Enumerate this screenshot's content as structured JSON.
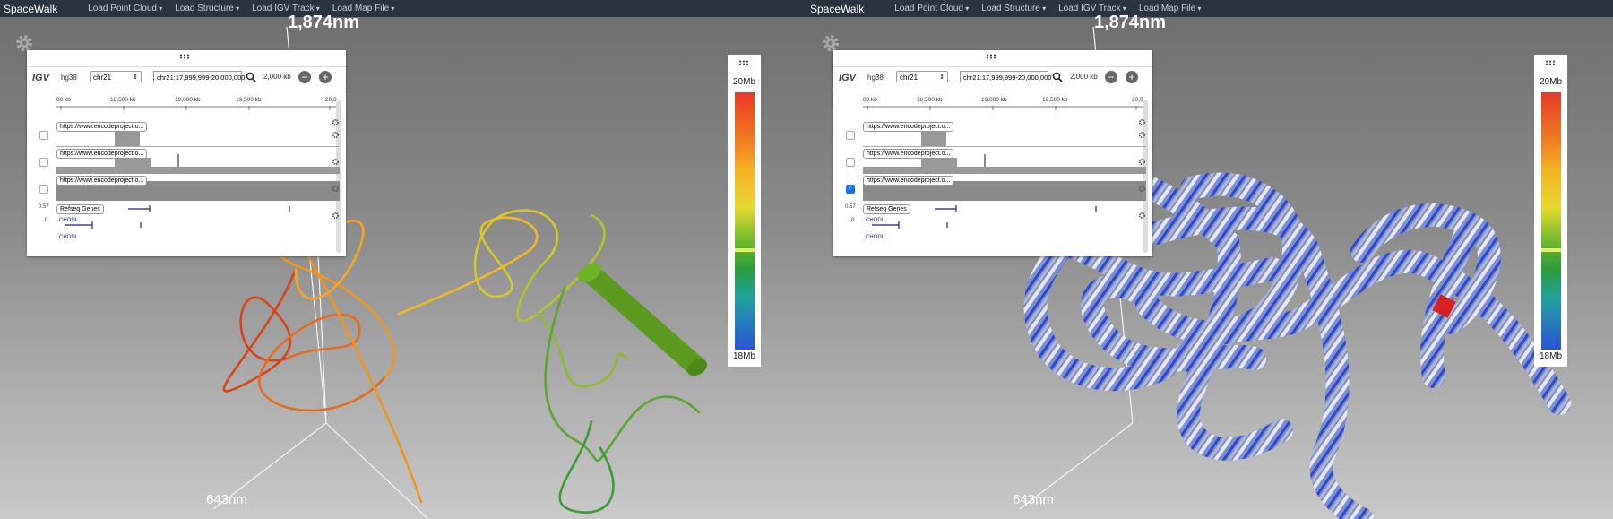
{
  "navbar": {
    "brand": "SpaceWalk",
    "menus": [
      "Load Point Cloud",
      "Load Structure",
      "Load IGV Track",
      "Load Map File"
    ]
  },
  "scale": {
    "top": "1,874nm",
    "bottom": "643nm"
  },
  "igv": {
    "logo": "IGV",
    "genome": "hg38",
    "chromosome": "chr21",
    "locus": "chr21:17,999,999-20,000,000",
    "width": "2,000 kb",
    "ruler": [
      "00 kb",
      "18,500 kb",
      "19,000 kb",
      "19,500 kb",
      "20,0"
    ],
    "tracks": [
      {
        "name": "https://www.encodeproject.o..."
      },
      {
        "name": "https://www.encodeproject.o..."
      },
      {
        "name": "https://www.encodeproject.o..."
      }
    ],
    "genes_track": "Refseq Genes",
    "range_top": "0.57",
    "range_bottom": "0",
    "gene_labels": [
      "CHODL",
      "CHODL"
    ]
  },
  "colormap": {
    "max": "20Mb",
    "min": "18Mb"
  },
  "views": [
    {
      "id": "left",
      "render": "line-trace",
      "checked_track": null
    },
    {
      "id": "right",
      "render": "tube-igv-colored",
      "checked_track": 2
    }
  ],
  "colors": {
    "accent": "#1a73e8",
    "navbar": "#2a3440"
  }
}
